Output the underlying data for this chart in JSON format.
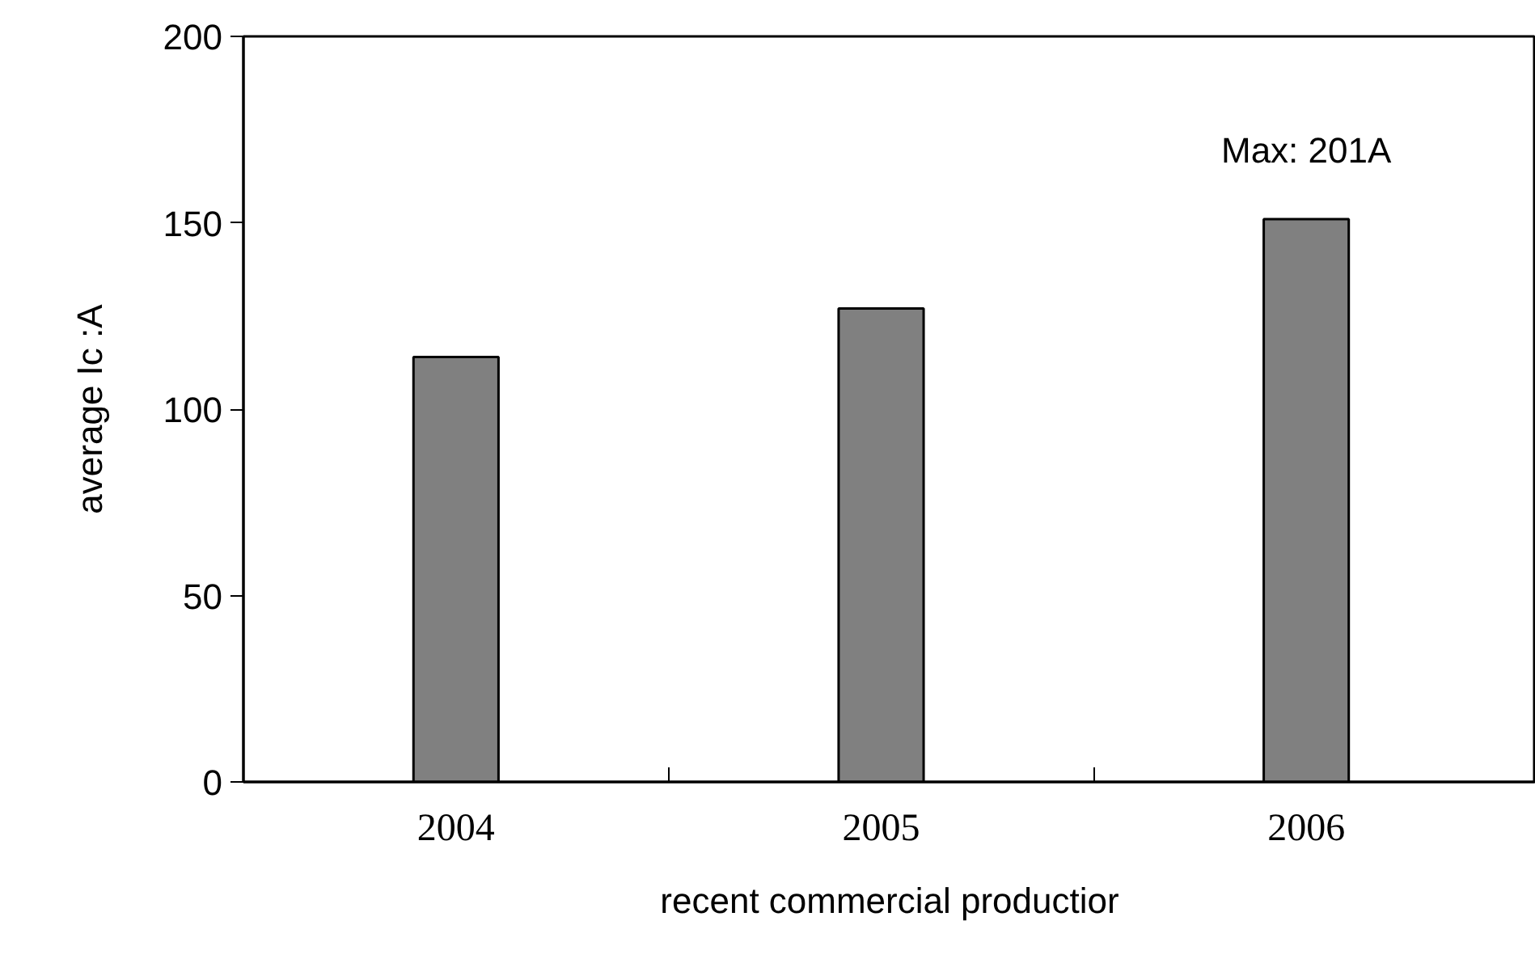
{
  "chart_data": {
    "type": "bar",
    "xlabel": "recent commercial productior",
    "ylabel": "average Ic :A",
    "categories": [
      "2004",
      "2005",
      "2006"
    ],
    "values": [
      114,
      127,
      151
    ],
    "color": "#808080",
    "ylim": [
      0,
      200
    ],
    "yticks": [
      0,
      50,
      100,
      150,
      200
    ],
    "grid": false,
    "annotations": [
      "Max: 201A"
    ]
  }
}
